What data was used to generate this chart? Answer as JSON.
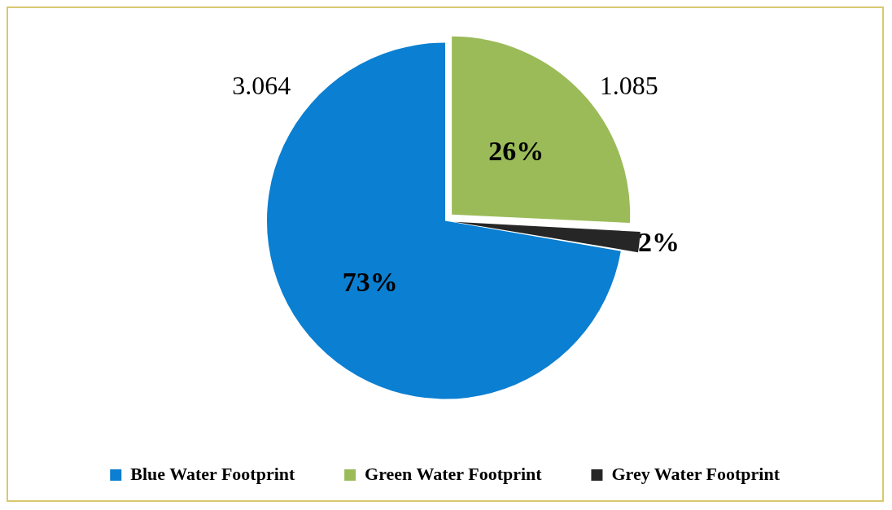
{
  "chart_data": {
    "type": "pie",
    "categories": [
      "Blue Water Footprint",
      "Green Water Footprint",
      "Grey Water Footprint"
    ],
    "values": [
      73,
      26,
      2
    ],
    "colors": [
      "#0b7fd1",
      "#9bbb59",
      "#262626"
    ],
    "value_labels": [
      "73%",
      "26%",
      "2%"
    ],
    "annotations": [
      "3.064",
      "1.085"
    ],
    "legend": "bottom"
  }
}
